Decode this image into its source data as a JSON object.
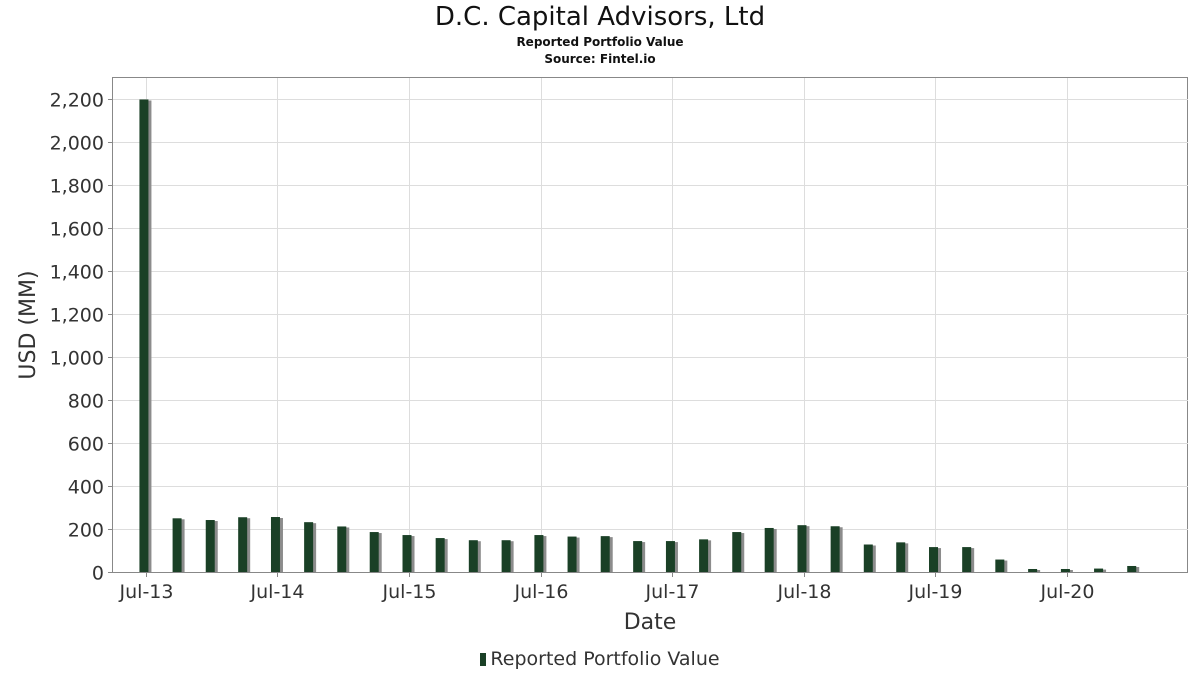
{
  "chart_data": {
    "type": "bar",
    "title": "D.C. Capital Advisors, Ltd",
    "subtitle": "Reported Portfolio Value",
    "source": "Source: Fintel.io",
    "xlabel": "Date",
    "ylabel": "USD (MM)",
    "ylim": [
      0,
      2300
    ],
    "yticks": [
      "0",
      "200",
      "400",
      "600",
      "800",
      "1,000",
      "1,200",
      "1,400",
      "1,600",
      "1,800",
      "2,000",
      "2,200"
    ],
    "ytick_values": [
      0,
      200,
      400,
      600,
      800,
      1000,
      1200,
      1400,
      1600,
      1800,
      2000,
      2200
    ],
    "xlim": [
      "2013-04-01",
      "2021-06-01"
    ],
    "xticks": [
      "Jul-13",
      "Jul-14",
      "Jul-15",
      "Jul-16",
      "Jul-17",
      "Jul-18",
      "Jul-19",
      "Jul-20"
    ],
    "xtick_dates": [
      "2013-07-01",
      "2014-07-01",
      "2015-07-01",
      "2016-07-01",
      "2017-07-01",
      "2018-07-01",
      "2019-07-01",
      "2020-07-01"
    ],
    "grid": true,
    "legend_position": "bottom",
    "series": [
      {
        "name": "Reported Portfolio Value",
        "color": "#1a4026",
        "shadow_color": "#8c8c8c",
        "x": [
          "2013-06-30",
          "2013-09-30",
          "2013-12-31",
          "2014-03-31",
          "2014-06-30",
          "2014-09-30",
          "2014-12-31",
          "2015-03-31",
          "2015-06-30",
          "2015-09-30",
          "2015-12-31",
          "2016-03-31",
          "2016-06-30",
          "2016-09-30",
          "2016-12-31",
          "2017-03-31",
          "2017-06-30",
          "2017-09-30",
          "2017-12-31",
          "2018-03-31",
          "2018-06-30",
          "2018-09-30",
          "2018-12-31",
          "2019-03-31",
          "2019-06-30",
          "2019-09-30",
          "2019-12-31",
          "2020-03-31",
          "2020-06-30",
          "2020-09-30",
          "2020-12-31"
        ],
        "values": [
          2200,
          250,
          242,
          255,
          256,
          232,
          212,
          186,
          172,
          158,
          148,
          148,
          172,
          165,
          167,
          144,
          144,
          152,
          186,
          205,
          218,
          213,
          128,
          138,
          116,
          116,
          58,
          14,
          14,
          16,
          28
        ]
      }
    ]
  },
  "legend": {
    "label": "Reported Portfolio Value"
  }
}
